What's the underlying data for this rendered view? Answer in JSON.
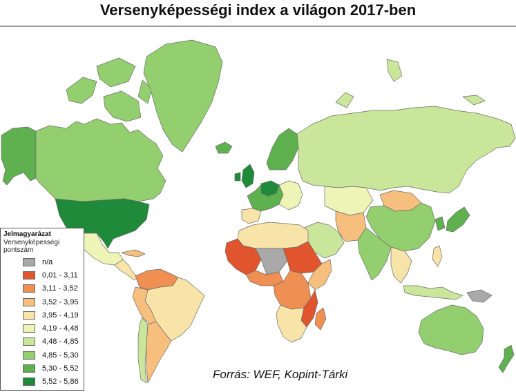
{
  "title": "Versenyképességi index a világon 2017-ben",
  "legend": {
    "title": "Jelmagyarázat",
    "subtitle_line1": "Versenyképességi",
    "subtitle_line2": "pontszám",
    "items": [
      {
        "label": "n/a",
        "color": "#a9a9a9"
      },
      {
        "label": "0,01 - 3,11",
        "color": "#e0552d"
      },
      {
        "label": "3,11 - 3,52",
        "color": "#f08f52"
      },
      {
        "label": "3,52 - 3,95",
        "color": "#f7bf7e"
      },
      {
        "label": "3,95 - 4,19",
        "color": "#f8e3a8"
      },
      {
        "label": "4,19 - 4,48",
        "color": "#eef3b6"
      },
      {
        "label": "4,48 - 4,85",
        "color": "#c9e69a"
      },
      {
        "label": "4,85 - 5,30",
        "color": "#93cf6f"
      },
      {
        "label": "5,30 - 5,52",
        "color": "#5fb04f"
      },
      {
        "label": "5,52 - 5,86",
        "color": "#1e8a3a"
      }
    ]
  },
  "source": "Forrás: WEF, Kopint-Tárki"
}
